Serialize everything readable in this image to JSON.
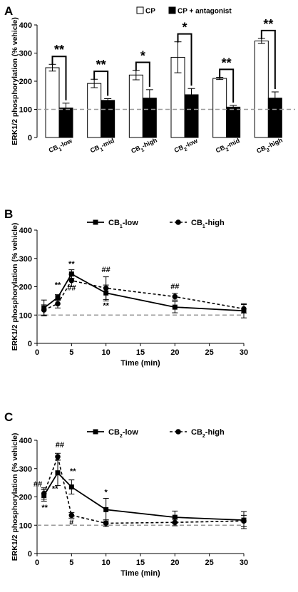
{
  "colors": {
    "black": "#000000",
    "white": "#ffffff",
    "reference": "#999999"
  },
  "chart_data": [
    {
      "panel": "A",
      "type": "bar",
      "ylabel": "ERK1/2 phosphorylation (% vehicle)",
      "yticks": [
        "0",
        "100",
        "200",
        "300",
        "400"
      ],
      "ylim": [
        0,
        400
      ],
      "reference_line": 100,
      "legend": {
        "placement": "top-right",
        "entries": [
          "CP",
          "CP + antagonist"
        ]
      },
      "categories": [
        {
          "base": "CB",
          "sub": "1",
          "suffix": "-low"
        },
        {
          "base": "CB",
          "sub": "1",
          "suffix": "-mid"
        },
        {
          "base": "CB",
          "sub": "1",
          "suffix": "-high"
        },
        {
          "base": "CB",
          "sub": "2",
          "suffix": "-low"
        },
        {
          "base": "CB",
          "sub": "2",
          "suffix": "-mid"
        },
        {
          "base": "CB",
          "sub": "2",
          "suffix": "-high"
        }
      ],
      "series": [
        {
          "name": "CP",
          "values": [
            248,
            192,
            222,
            285,
            210,
            343
          ],
          "errors": [
            12,
            15,
            17,
            55,
            4,
            9
          ]
        },
        {
          "name": "CP + antagonist",
          "values": [
            105,
            132,
            140,
            152,
            108,
            140
          ],
          "errors": [
            17,
            6,
            30,
            22,
            6,
            22
          ]
        }
      ],
      "significance": [
        "**",
        "**",
        "*",
        "*",
        "**",
        "**"
      ]
    },
    {
      "panel": "B",
      "type": "line",
      "ylabel": "ERK1/2 phosphorylation (% vehicle)",
      "xlabel": "Time (min)",
      "xlim": [
        0,
        30
      ],
      "ylim": [
        0,
        400
      ],
      "xticks": [
        "0",
        "5",
        "10",
        "15",
        "20",
        "25",
        "30"
      ],
      "yticks": [
        "0",
        "100",
        "200",
        "300",
        "400"
      ],
      "reference_line": 100,
      "legend": [
        {
          "base": "CB",
          "sub": "1",
          "suffix": "-low",
          "style": "solid",
          "marker": "square"
        },
        {
          "base": "CB",
          "sub": "1",
          "suffix": "-high",
          "style": "dashed",
          "marker": "circle"
        }
      ],
      "series": [
        {
          "x": [
            1,
            3,
            5,
            10,
            20,
            30
          ],
          "values": [
            125,
            162,
            245,
            178,
            128,
            115
          ],
          "errors": [
            28,
            10,
            15,
            28,
            20,
            25
          ]
        },
        {
          "x": [
            1,
            3,
            5,
            10,
            20,
            30
          ],
          "values": [
            118,
            140,
            222,
            195,
            165,
            122
          ],
          "errors": [
            18,
            15,
            22,
            40,
            12,
            15
          ]
        }
      ],
      "annotations": [
        {
          "text": "**",
          "x": 3,
          "y": 198
        },
        {
          "text": "**",
          "x": 5,
          "y": 272
        },
        {
          "text": "##",
          "x": 5,
          "y": 187
        },
        {
          "text": "##",
          "x": 10,
          "y": 251
        },
        {
          "text": "**",
          "x": 10,
          "y": 125
        },
        {
          "text": "##",
          "x": 20,
          "y": 192
        }
      ]
    },
    {
      "panel": "C",
      "type": "line",
      "ylabel": "ERK1/2 phosphorylation (% vehicle)",
      "xlabel": "Time (min)",
      "xlim": [
        0,
        30
      ],
      "ylim": [
        0,
        400
      ],
      "xticks": [
        "0",
        "5",
        "10",
        "15",
        "20",
        "25",
        "30"
      ],
      "yticks": [
        "0",
        "100",
        "200",
        "300",
        "400"
      ],
      "reference_line": 100,
      "legend": [
        {
          "base": "CB",
          "sub": "2",
          "suffix": "-low",
          "style": "solid",
          "marker": "square"
        },
        {
          "base": "CB",
          "sub": "2",
          "suffix": "-high",
          "style": "dashed",
          "marker": "circle"
        }
      ],
      "series": [
        {
          "x": [
            1,
            3,
            5,
            10,
            20,
            30
          ],
          "values": [
            205,
            285,
            235,
            155,
            128,
            118
          ],
          "errors": [
            20,
            45,
            25,
            40,
            22,
            30
          ]
        },
        {
          "x": [
            1,
            3,
            5,
            10,
            20,
            30
          ],
          "values": [
            212,
            342,
            135,
            107,
            110,
            115
          ],
          "errors": [
            20,
            12,
            10,
            12,
            12,
            20
          ]
        }
      ],
      "annotations": [
        {
          "text": "##",
          "x": 0.1,
          "y": 236
        },
        {
          "text": "**",
          "x": 1.1,
          "y": 153
        },
        {
          "text": "##",
          "x": 3.3,
          "y": 375
        },
        {
          "text": "**",
          "x": 2.6,
          "y": 220
        },
        {
          "text": "**",
          "x": 5.2,
          "y": 282
        },
        {
          "text": "#",
          "x": 5.0,
          "y": 102
        },
        {
          "text": "*",
          "x": 10.0,
          "y": 207
        }
      ]
    }
  ]
}
